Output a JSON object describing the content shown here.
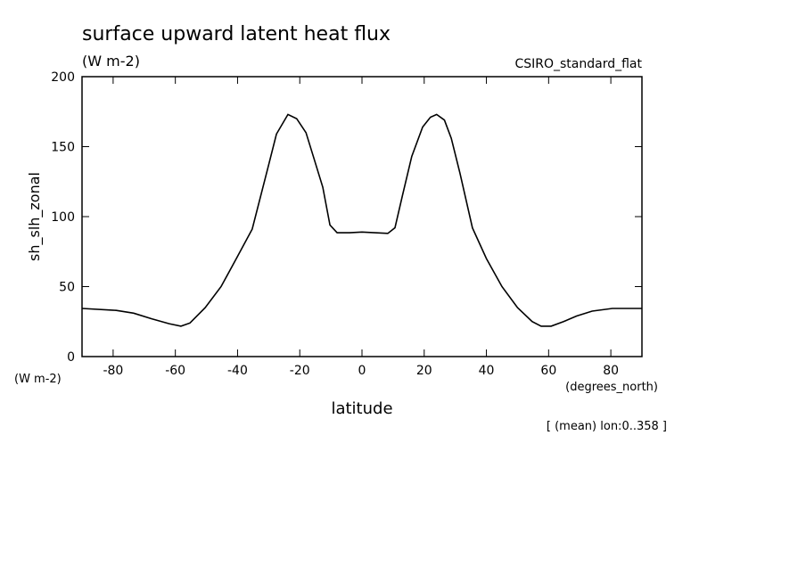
{
  "chart_data": {
    "type": "line",
    "title": "surface upward latent heat flux",
    "subtitle": "(W m-2)",
    "model_label": "CSIRO_standard_flat",
    "y_label": "sh_slh_zonal",
    "y_units": "(W m-2)",
    "x_label": "latitude",
    "x_units": "(degrees_north)",
    "annotation": "[ (mean) lon:0..358 ]",
    "color": "#000000",
    "x": [
      -90,
      -79,
      -73.4,
      -67.6,
      -62,
      -58.2,
      -55.3,
      -50.4,
      -45.3,
      -40.4,
      -35.3,
      -30,
      -27.5,
      -23.8,
      -21,
      -18,
      -15.5,
      -12.6,
      -10.3,
      -8,
      -4,
      0,
      8.3,
      10.6,
      13,
      16,
      19.5,
      22,
      24,
      26.5,
      28.7,
      31.5,
      35.5,
      40,
      45,
      50,
      54.7,
      57.6,
      60.8,
      64.8,
      69,
      74,
      80.5,
      90
    ],
    "values": [
      34.4,
      33,
      31,
      27,
      23.5,
      21.7,
      24,
      35,
      50,
      70,
      91,
      137,
      159,
      173,
      170,
      160,
      142,
      121,
      94,
      88.5,
      88.5,
      89,
      88,
      92,
      115,
      143,
      164,
      171,
      173,
      169,
      156,
      131,
      92,
      70,
      50,
      35,
      25,
      21.7,
      21.7,
      25,
      29,
      32.5,
      34.4,
      34.4
    ],
    "xlim": [
      -90,
      90
    ],
    "ylim": [
      0,
      200
    ],
    "xticks": [
      -80,
      -60,
      -40,
      -20,
      0,
      20,
      40,
      60,
      80
    ],
    "yticks": [
      0,
      50,
      100,
      150,
      200
    ]
  }
}
